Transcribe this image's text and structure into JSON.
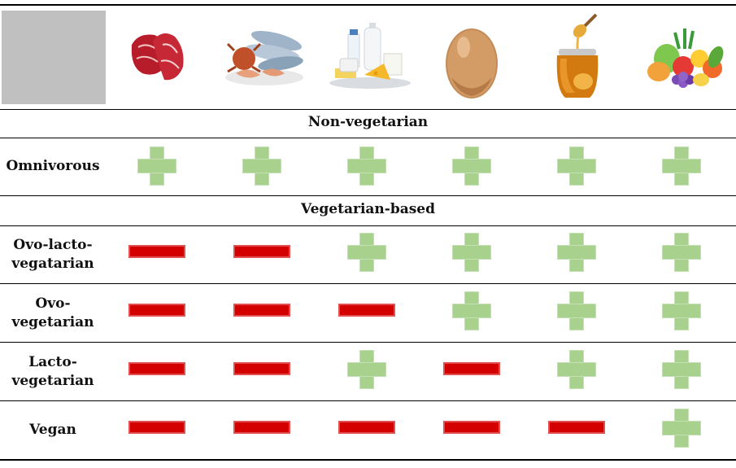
{
  "header": {
    "icons": [
      "meat-icon",
      "seafood-icon",
      "dairy-icon",
      "egg-icon",
      "honey-icon",
      "fruits-vegetables-icon"
    ]
  },
  "sections": {
    "non_vegetarian": "Non-vegetarian",
    "vegetarian_based": "Vegetarian-based"
  },
  "rows": [
    {
      "label_lines": [
        "Omnivorous"
      ],
      "values": [
        "+",
        "+",
        "+",
        "+",
        "+",
        "+"
      ]
    },
    {
      "label_lines": [
        "Ovo-lacto-",
        "vegatarian"
      ],
      "values": [
        "-",
        "-",
        "+",
        "+",
        "+",
        "+"
      ]
    },
    {
      "label_lines": [
        "Ovo-",
        "vegetarian"
      ],
      "values": [
        "-",
        "-",
        "-",
        "+",
        "+",
        "+"
      ]
    },
    {
      "label_lines": [
        "Lacto-",
        "vegetarian"
      ],
      "values": [
        "-",
        "-",
        "+",
        "-",
        "+",
        "+"
      ]
    },
    {
      "label_lines": [
        "Vegan"
      ],
      "values": [
        "-",
        "-",
        "-",
        "-",
        "-",
        "+"
      ]
    }
  ],
  "colors": {
    "allowed": "#a9d18e",
    "excluded": "#d40000"
  }
}
